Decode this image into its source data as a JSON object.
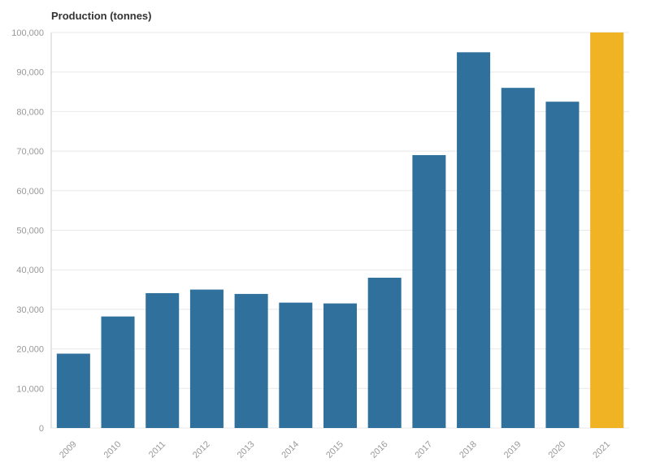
{
  "chart_data": {
    "type": "bar",
    "title": "Production (tonnes)",
    "xlabel": "",
    "ylabel": "",
    "categories": [
      "2009",
      "2010",
      "2011",
      "2012",
      "2013",
      "2014",
      "2015",
      "2016",
      "2017",
      "2018",
      "2019",
      "2020",
      "2021"
    ],
    "values": [
      18800,
      28200,
      34100,
      35000,
      33900,
      31700,
      31500,
      38000,
      69000,
      95000,
      86000,
      82500,
      100000
    ],
    "highlight_index": 12,
    "colors": {
      "bar": "#2f719c",
      "highlight": "#f0b323",
      "grid": "#e8e8e8",
      "axis_text": "#999999"
    },
    "ylim": [
      0,
      100000
    ],
    "yticks": [
      0,
      10000,
      20000,
      30000,
      40000,
      50000,
      60000,
      70000,
      80000,
      90000,
      100000
    ],
    "ytick_labels": [
      "0",
      "10,000",
      "20,000",
      "30,000",
      "40,000",
      "50,000",
      "60,000",
      "70,000",
      "80,000",
      "90,000",
      "100,000"
    ],
    "grid": true,
    "legend": "none"
  }
}
